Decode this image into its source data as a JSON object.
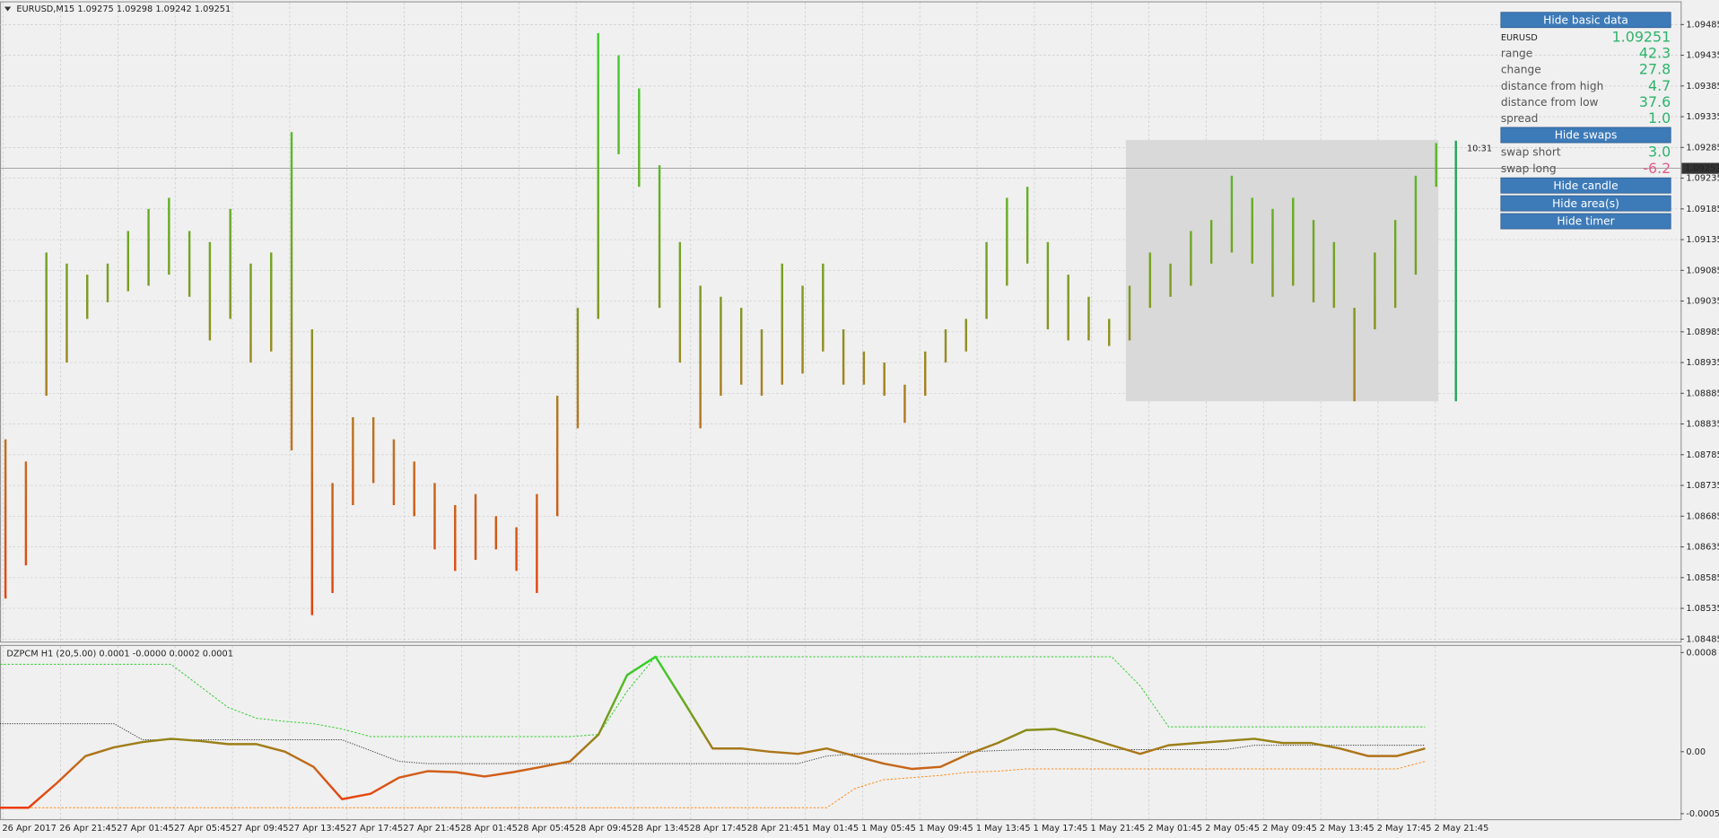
{
  "price_chart": {
    "header": "EURUSD,M15  1.09275 1.09298 1.09242 1.09251",
    "ylim": [
      1.08481,
      1.09521
    ],
    "yticks": [
      1.08485,
      1.08535,
      1.08585,
      1.08635,
      1.08685,
      1.08735,
      1.08785,
      1.08835,
      1.08885,
      1.08935,
      1.08985,
      1.09035,
      1.09085,
      1.09135,
      1.09185,
      1.09235,
      1.09285,
      1.09335,
      1.09385,
      1.09435,
      1.09485
    ],
    "bars": [
      [
        1.0881,
        1.08551
      ],
      [
        1.08774,
        1.08605
      ],
      [
        1.09114,
        1.08881
      ],
      [
        1.09096,
        1.08935
      ],
      [
        1.09078,
        1.09006
      ],
      [
        1.09096,
        1.09033
      ],
      [
        1.09149,
        1.09051
      ],
      [
        1.09185,
        1.0906
      ],
      [
        1.09203,
        1.09078
      ],
      [
        1.09149,
        1.09042
      ],
      [
        1.09131,
        1.08971
      ],
      [
        1.09185,
        1.09006
      ],
      [
        1.09096,
        1.08935
      ],
      [
        1.09114,
        1.08953
      ],
      [
        1.0931,
        1.08792
      ],
      [
        1.08989,
        1.08524
      ],
      [
        1.08739,
        1.0856
      ],
      [
        1.08846,
        1.08703
      ],
      [
        1.08846,
        1.08739
      ],
      [
        1.0881,
        1.08703
      ],
      [
        1.08774,
        1.08685
      ],
      [
        1.08739,
        1.08631
      ],
      [
        1.08703,
        1.08596
      ],
      [
        1.08721,
        1.08614
      ],
      [
        1.08685,
        1.08631
      ],
      [
        1.08667,
        1.08596
      ],
      [
        1.08721,
        1.0856
      ],
      [
        1.08881,
        1.08685
      ],
      [
        1.09024,
        1.08828
      ],
      [
        1.09471,
        1.09006
      ],
      [
        1.09435,
        1.09274
      ],
      [
        1.09381,
        1.09221
      ],
      [
        1.09256,
        1.09024
      ],
      [
        1.09131,
        1.08935
      ],
      [
        1.0906,
        1.08828
      ],
      [
        1.09042,
        1.08881
      ],
      [
        1.09024,
        1.08899
      ],
      [
        1.08989,
        1.08881
      ],
      [
        1.09096,
        1.08899
      ],
      [
        1.0906,
        1.08917
      ],
      [
        1.09096,
        1.08953
      ],
      [
        1.08989,
        1.08899
      ],
      [
        1.08953,
        1.08899
      ],
      [
        1.08935,
        1.08881
      ],
      [
        1.08899,
        1.08837
      ],
      [
        1.08953,
        1.08881
      ],
      [
        1.08989,
        1.08935
      ],
      [
        1.09006,
        1.08953
      ],
      [
        1.09131,
        1.09006
      ],
      [
        1.09203,
        1.0906
      ],
      [
        1.09221,
        1.09096
      ],
      [
        1.09131,
        1.08989
      ],
      [
        1.09078,
        1.08971
      ],
      [
        1.09042,
        1.08971
      ],
      [
        1.09006,
        1.08962
      ],
      [
        1.0906,
        1.08971
      ],
      [
        1.09114,
        1.09024
      ],
      [
        1.09096,
        1.09042
      ],
      [
        1.09149,
        1.0906
      ],
      [
        1.09167,
        1.09096
      ],
      [
        1.09239,
        1.09114
      ],
      [
        1.09203,
        1.09096
      ],
      [
        1.09185,
        1.09042
      ],
      [
        1.09203,
        1.0906
      ],
      [
        1.09167,
        1.09033
      ],
      [
        1.09131,
        1.09024
      ],
      [
        1.09024,
        1.08872
      ],
      [
        1.09114,
        1.08989
      ],
      [
        1.09167,
        1.09024
      ],
      [
        1.09239,
        1.09078
      ],
      [
        1.09292,
        1.09221
      ]
    ],
    "current_bar": [
      1.09296,
      1.08872
    ],
    "current_price": 1.09251,
    "timer": "10:31",
    "area": {
      "high": 1.09297,
      "low": 1.08872
    }
  },
  "indicator": {
    "header": "DZPCM H1 (20,5.00) 0.0001 -0.0000 0.0002 0.0001",
    "ylim": [
      -0.000553,
      0.000853
    ],
    "yticks": [
      0.0008,
      {
        "value": 0,
        "label": "0.00"
      },
      -0.0005
    ],
    "main": [
      -0.000452,
      -0.000452,
      -0.000252,
      -3.5e-05,
      3.5e-05,
      7.8e-05,
      0.000104,
      8.7e-05,
      6.1e-05,
      6.1e-05,
      0,
      -0.000122,
      -0.000383,
      -0.000339,
      -0.000209,
      -0.000157,
      -0.000165,
      -0.0002,
      -0.000165,
      -0.000122,
      -7.8e-05,
      0.000139,
      0.000618,
      0.000766,
      0.0004,
      2.6e-05,
      2.6e-05,
      0,
      -1.7e-05,
      2.6e-05,
      -3.5e-05,
      -9.6e-05,
      -0.000139,
      -0.000122,
      -1.7e-05,
      7e-05,
      0.000174,
      0.000183,
      0.000122,
      5.2e-05,
      -1.7e-05,
      5.2e-05,
      7e-05,
      8.7e-05,
      0.000104,
      7e-05,
      7e-05,
      2.6e-05,
      -3.5e-05,
      -3.5e-05,
      2.6e-05
    ],
    "upper": {
      "color": "#33cc33",
      "values": [
        0.000705,
        0.000705,
        0.000705,
        0.000705,
        0.000705,
        0.000705,
        0.000705,
        0.000531,
        0.000357,
        0.00027,
        0.000244,
        0.000226,
        0.000183,
        0.000122,
        0.000122,
        0.000122,
        0.000122,
        0.000122,
        0.000122,
        0.000122,
        0.000122,
        0.000139,
        0.000487,
        0.000766,
        0.000766,
        0.000766,
        0.000766,
        0.000766,
        0.000766,
        0.000766,
        0.000766,
        0.000766,
        0.000766,
        0.000766,
        0.000766,
        0.000766,
        0.000766,
        0.000766,
        0.000766,
        0.000766,
        0.000531,
        0.0002,
        0.0002,
        0.0002,
        0.0002,
        0.0002,
        0.0002,
        0.0002,
        0.0002,
        0.0002,
        0.0002
      ]
    },
    "lower": {
      "color": "#ff8c1a",
      "values": [
        -0.000452,
        -0.000452,
        -0.000452,
        -0.000452,
        -0.000452,
        -0.000452,
        -0.000452,
        -0.000452,
        -0.000452,
        -0.000452,
        -0.000452,
        -0.000452,
        -0.000452,
        -0.000452,
        -0.000452,
        -0.000452,
        -0.000452,
        -0.000452,
        -0.000452,
        -0.000452,
        -0.000452,
        -0.000452,
        -0.000452,
        -0.000452,
        -0.000452,
        -0.000452,
        -0.000452,
        -0.000452,
        -0.000452,
        -0.000452,
        -0.000296,
        -0.000226,
        -0.000209,
        -0.000191,
        -0.000165,
        -0.000157,
        -0.000139,
        -0.000139,
        -0.000139,
        -0.000139,
        -0.000139,
        -0.000139,
        -0.000139,
        -0.000139,
        -0.000139,
        -0.000139,
        -0.000139,
        -0.000139,
        -0.000139,
        -0.000139,
        -7.8e-05
      ]
    },
    "middle": {
      "color": "#333333",
      "values": [
        0.000226,
        0.000226,
        0.000226,
        0.000226,
        0.000226,
        9.6e-05,
        9.6e-05,
        9.6e-05,
        9.6e-05,
        9.6e-05,
        9.6e-05,
        9.6e-05,
        9.6e-05,
        9e-06,
        -7.8e-05,
        -9.6e-05,
        -9.6e-05,
        -9.6e-05,
        -9.6e-05,
        -9.6e-05,
        -9.6e-05,
        -9.6e-05,
        -9.6e-05,
        -9.6e-05,
        -9.6e-05,
        -9.6e-05,
        -9.6e-05,
        -9.6e-05,
        -9.6e-05,
        -3.5e-05,
        -1.7e-05,
        -1.7e-05,
        -1.7e-05,
        -9e-06,
        0,
        9e-06,
        1.7e-05,
        1.7e-05,
        1.7e-05,
        1.7e-05,
        1.7e-05,
        1.7e-05,
        1.7e-05,
        1.7e-05,
        5.2e-05,
        5.2e-05,
        5.2e-05,
        5.2e-05,
        5.2e-05,
        5.2e-05,
        5.2e-05
      ]
    }
  },
  "time_labels": [
    "26 Apr 2017",
    "26 Apr 21:45",
    "27 Apr 01:45",
    "27 Apr 05:45",
    "27 Apr 09:45",
    "27 Apr 13:45",
    "27 Apr 17:45",
    "27 Apr 21:45",
    "28 Apr 01:45",
    "28 Apr 05:45",
    "28 Apr 09:45",
    "28 Apr 13:45",
    "28 Apr 17:45",
    "28 Apr 21:45",
    "1 May 01:45",
    "1 May 05:45",
    "1 May 09:45",
    "1 May 13:45",
    "1 May 17:45",
    "1 May 21:45",
    "2 May 01:45",
    "2 May 05:45",
    "2 May 09:45",
    "2 May 13:45",
    "2 May 17:45",
    "2 May 21:45"
  ],
  "panel": {
    "hide_basic": "Hide basic data",
    "symbol": "EURUSD",
    "price": "1.09251",
    "rows": [
      [
        "range",
        "42.3"
      ],
      [
        "change",
        "27.8"
      ],
      [
        "distance from high",
        "4.7"
      ],
      [
        "distance from low",
        "37.6"
      ],
      [
        "spread",
        "1.0"
      ]
    ],
    "hide_swaps": "Hide swaps",
    "swaps": [
      [
        "swap short",
        "3.0"
      ],
      [
        "swap long",
        "-6.2"
      ]
    ],
    "buttons": [
      "Hide candle",
      "Hide area(s)",
      "Hide timer"
    ]
  }
}
